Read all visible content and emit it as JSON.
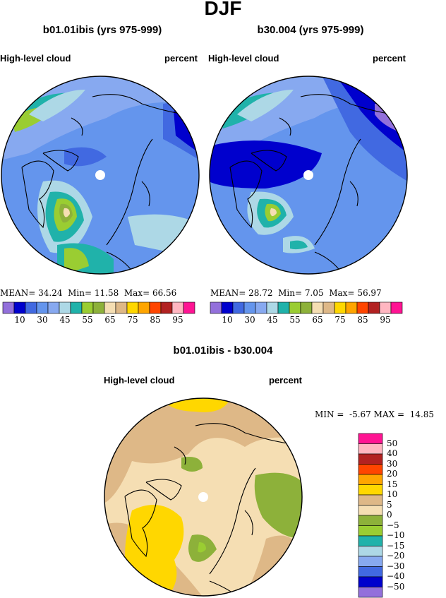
{
  "title": "DJF",
  "panels": [
    {
      "id": "b01",
      "case": "b01.01ibis (yrs 975-999)",
      "variable": "High-level cloud",
      "units": "percent",
      "stats": {
        "mean": "34.24",
        "min": "11.58",
        "max": "66.56"
      }
    },
    {
      "id": "b30",
      "case": "b30.004 (yrs 975-999)",
      "variable": "High-level cloud",
      "units": "percent",
      "stats": {
        "mean": "28.72",
        "min": "7.05",
        "max": "56.97"
      }
    }
  ],
  "labels": {
    "mean": "MEAN=",
    "min": "Min=",
    "max": "Max="
  },
  "abs_colorbar": {
    "colors": [
      "#9370DB",
      "#0000CD",
      "#4169E1",
      "#6495ED",
      "#87A9F0",
      "#ADD8E6",
      "#20B2AA",
      "#9ACD32",
      "#8DB13A",
      "#F5DEB3",
      "#DEB887",
      "#FFD700",
      "#FFA500",
      "#FF4500",
      "#B22222",
      "#FFB6C1",
      "#FF1493"
    ],
    "tick_labels": [
      "10",
      "30",
      "45",
      "55",
      "65",
      "75",
      "85",
      "95"
    ]
  },
  "diff": {
    "title": "b01.01ibis - b30.004",
    "variable": "High-level cloud",
    "units": "percent",
    "min_label": "MIN =",
    "min": "-5.67",
    "max_label": "MAX =",
    "max": "14.85"
  },
  "diff_colorbar": {
    "colors": [
      "#FF1493",
      "#FFB6C1",
      "#B22222",
      "#FF4500",
      "#FFA500",
      "#FFD700",
      "#DEB887",
      "#F5DEB3",
      "#8DB13A",
      "#9ACD32",
      "#20B2AA",
      "#ADD8E6",
      "#87A9F0",
      "#4169E1",
      "#0000CD",
      "#9370DB"
    ],
    "tick_labels": [
      "50",
      "40",
      "30",
      "20",
      "15",
      "10",
      "5",
      "0",
      "−5",
      "−10",
      "−15",
      "−20",
      "−30",
      "−40",
      "−50"
    ]
  }
}
